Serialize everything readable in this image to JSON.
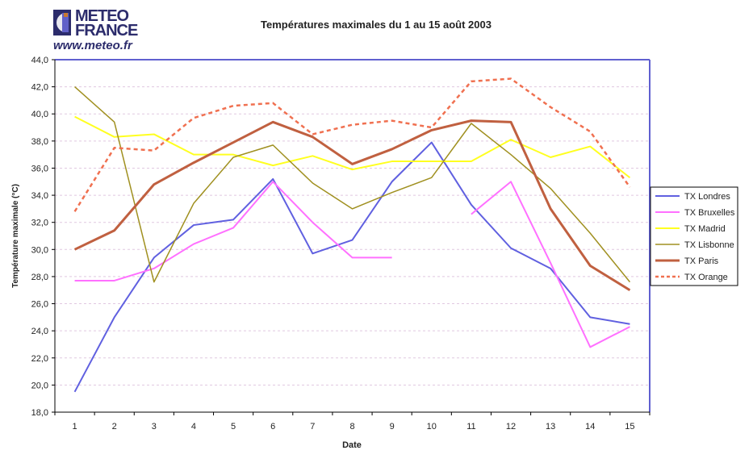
{
  "logo": {
    "line1": "METEO",
    "line2": "FRANCE",
    "url": "www.meteo.fr"
  },
  "chart_data": {
    "type": "line",
    "title": "Températures maximales du 1 au 15 août 2003",
    "xlabel": "Date",
    "ylabel": "Température maximale (°C)",
    "ylim": [
      18,
      44
    ],
    "yticks": [
      "18,0",
      "20,0",
      "22,0",
      "24,0",
      "26,0",
      "28,0",
      "30,0",
      "32,0",
      "34,0",
      "36,0",
      "38,0",
      "40,0",
      "42,0",
      "44,0"
    ],
    "categories": [
      "1",
      "2",
      "3",
      "4",
      "5",
      "6",
      "7",
      "8",
      "9",
      "10",
      "11",
      "12",
      "13",
      "14",
      "15"
    ],
    "grid": true,
    "legend_position": "right",
    "series": [
      {
        "name": "TX Londres",
        "color": "#6060e0",
        "dash": false,
        "width": 2,
        "values": [
          19.5,
          25.0,
          29.4,
          31.8,
          32.2,
          35.2,
          29.7,
          30.7,
          35.0,
          37.9,
          33.3,
          30.1,
          28.6,
          25.0,
          24.5
        ]
      },
      {
        "name": "TX Bruxelles",
        "color": "#ff70ff",
        "dash": false,
        "width": 2,
        "values": [
          27.7,
          27.7,
          28.6,
          30.4,
          31.6,
          35.0,
          32.0,
          29.4,
          29.4,
          null,
          32.6,
          35.0,
          29.0,
          22.8,
          24.3
        ]
      },
      {
        "name": "TX Madrid",
        "color": "#ffff20",
        "dash": false,
        "width": 2,
        "values": [
          39.8,
          38.3,
          38.5,
          37.0,
          37.0,
          36.2,
          36.9,
          35.9,
          36.5,
          36.5,
          36.5,
          38.1,
          36.8,
          37.6,
          35.3
        ]
      },
      {
        "name": "TX Lisbonne",
        "color": "#a09020",
        "dash": false,
        "width": 1.5,
        "values": [
          42.0,
          39.4,
          27.6,
          33.4,
          36.8,
          37.7,
          34.9,
          33.0,
          34.2,
          35.3,
          39.3,
          37.0,
          34.5,
          31.2,
          27.6
        ]
      },
      {
        "name": "TX Paris",
        "color": "#c06040",
        "dash": false,
        "width": 3,
        "values": [
          30.0,
          31.4,
          34.8,
          36.4,
          37.9,
          39.4,
          38.3,
          36.3,
          37.4,
          38.8,
          39.5,
          39.4,
          33.0,
          28.8,
          27.0
        ]
      },
      {
        "name": "TX Orange",
        "color": "#f07050",
        "dash": true,
        "width": 2.5,
        "values": [
          32.8,
          37.5,
          37.3,
          39.7,
          40.6,
          40.8,
          38.5,
          39.2,
          39.5,
          39.0,
          42.4,
          42.6,
          40.5,
          38.7,
          34.6
        ]
      }
    ]
  }
}
